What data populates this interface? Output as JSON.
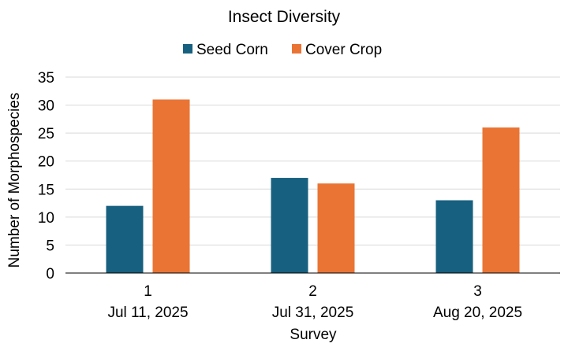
{
  "chart_data": {
    "type": "bar",
    "title": "Insect Diversity",
    "xlabel": "Survey",
    "ylabel": "Number of Morphospecies",
    "categories": [
      {
        "line1": "1",
        "line2": "Jul 11, 2025"
      },
      {
        "line1": "2",
        "line2": "Jul 31, 2025"
      },
      {
        "line1": "3",
        "line2": "Aug 20, 2025"
      }
    ],
    "series": [
      {
        "name": "Seed Corn",
        "color": "#17607f",
        "values": [
          12,
          17,
          13
        ]
      },
      {
        "name": "Cover Crop",
        "color": "#ea7434",
        "values": [
          31,
          16,
          26
        ]
      }
    ],
    "ylim": [
      0,
      35
    ],
    "yticks": [
      0,
      5,
      10,
      15,
      20,
      25,
      30,
      35
    ],
    "grid": true,
    "legend_position": "top"
  }
}
